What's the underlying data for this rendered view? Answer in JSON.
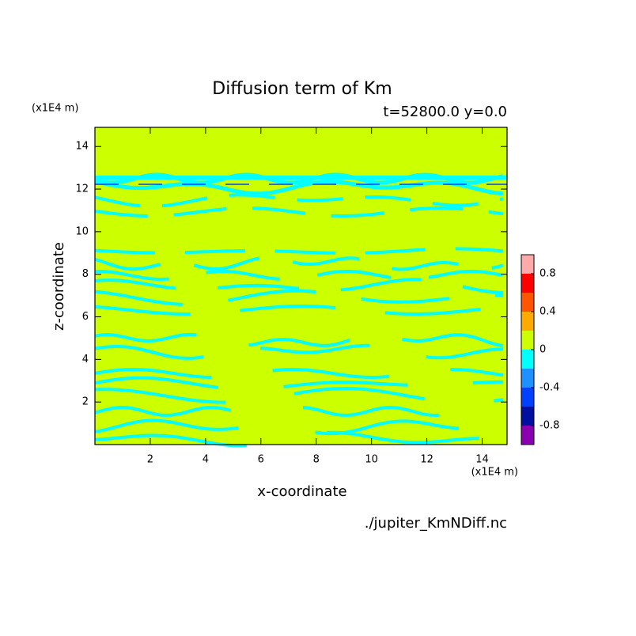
{
  "chart_data": {
    "type": "contour",
    "title": "Diffusion term of Km",
    "subtitle": "t=52800.0 y=0.0",
    "x_label": "x-coordinate",
    "y_label": "z-coordinate",
    "x_unit": "(x1E4 m)",
    "y_unit": "(x1E4 m)",
    "source": "./jupiter_KmNDiff.nc",
    "xlim": [
      0,
      14.9
    ],
    "xticks": [
      2,
      4,
      6,
      8,
      10,
      12,
      14
    ],
    "ylim": [
      0,
      14.9
    ],
    "yticks": [
      2,
      4,
      6,
      8,
      10,
      12,
      14
    ],
    "levels": [
      -1,
      -0.8,
      -0.6,
      -0.4,
      -0.2,
      0,
      0.2,
      0.4,
      0.6,
      0.8,
      1
    ],
    "colors": [
      "#8a00b0",
      "#0010a0",
      "#0040ff",
      "#1e90ff",
      "#00ffff",
      "#ccff00",
      "#ffaa00",
      "#ff5500",
      "#ff0000",
      "#ffaaaa"
    ],
    "colorbar_ticks": [
      -0.8,
      -0.4,
      0,
      0.4,
      0.8
    ]
  }
}
